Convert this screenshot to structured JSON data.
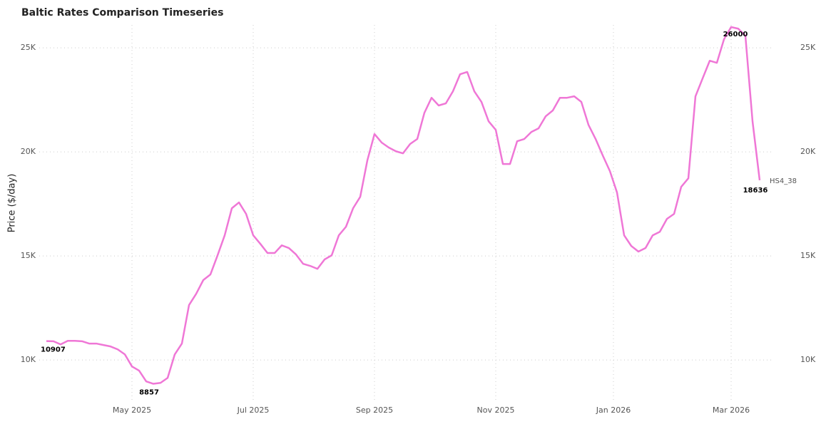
{
  "chart_data": {
    "type": "line",
    "title": "Baltic Rates Comparison Timeseries",
    "y_label": "Price ($/day)",
    "series": [
      {
        "name": "HS4_38",
        "color": "#ef77d6",
        "values": [
          10907,
          10900,
          10750,
          10920,
          10920,
          10900,
          10790,
          10790,
          10720,
          10650,
          10510,
          10270,
          9690,
          9490,
          8970,
          8857,
          8900,
          9140,
          10270,
          10790,
          12640,
          13180,
          13840,
          14110,
          15030,
          15990,
          17290,
          17570,
          17020,
          15990,
          15580,
          15140,
          15140,
          15510,
          15380,
          15070,
          14620,
          14520,
          14380,
          14830,
          15030,
          15990,
          16400,
          17290,
          17840,
          19590,
          20860,
          20450,
          20210,
          20030,
          19930,
          20380,
          20620,
          21880,
          22600,
          22230,
          22330,
          22910,
          23730,
          23840,
          22910,
          22400,
          21470,
          21060,
          19420,
          19420,
          20510,
          20620,
          20960,
          21130,
          21710,
          21990,
          22600,
          22600,
          22670,
          22400,
          21300,
          20620,
          19830,
          19080,
          18050,
          15990,
          15480,
          15210,
          15380,
          15990,
          16160,
          16780,
          17020,
          18320,
          18730,
          22670,
          23530,
          24380,
          24280,
          25410,
          26000,
          25920,
          25580,
          21470,
          18636
        ]
      }
    ],
    "xlim": [
      0,
      100
    ],
    "xticks": [
      {
        "value": 12,
        "label": "May 2025"
      },
      {
        "value": 29,
        "label": "Jul 2025"
      },
      {
        "value": 46,
        "label": "Sep 2025"
      },
      {
        "value": 63,
        "label": "Nov 2025"
      },
      {
        "value": 79.5,
        "label": "Jan 2026"
      },
      {
        "value": 96,
        "label": "Mar 2026"
      }
    ],
    "ylim": [
      7950,
      26100
    ],
    "yticks": [
      {
        "value": 10000,
        "label": "10K"
      },
      {
        "value": 15000,
        "label": "15K"
      },
      {
        "value": 20000,
        "label": "20K"
      },
      {
        "value": 25000,
        "label": "25K"
      }
    ],
    "y2lim": [
      7950,
      26100
    ],
    "y2ticks": [
      {
        "value": 10000,
        "label": "10K"
      },
      {
        "value": 15000,
        "label": "15K"
      },
      {
        "value": 20000,
        "label": "20K"
      },
      {
        "value": 25000,
        "label": "25K"
      }
    ],
    "grid": true
  }
}
